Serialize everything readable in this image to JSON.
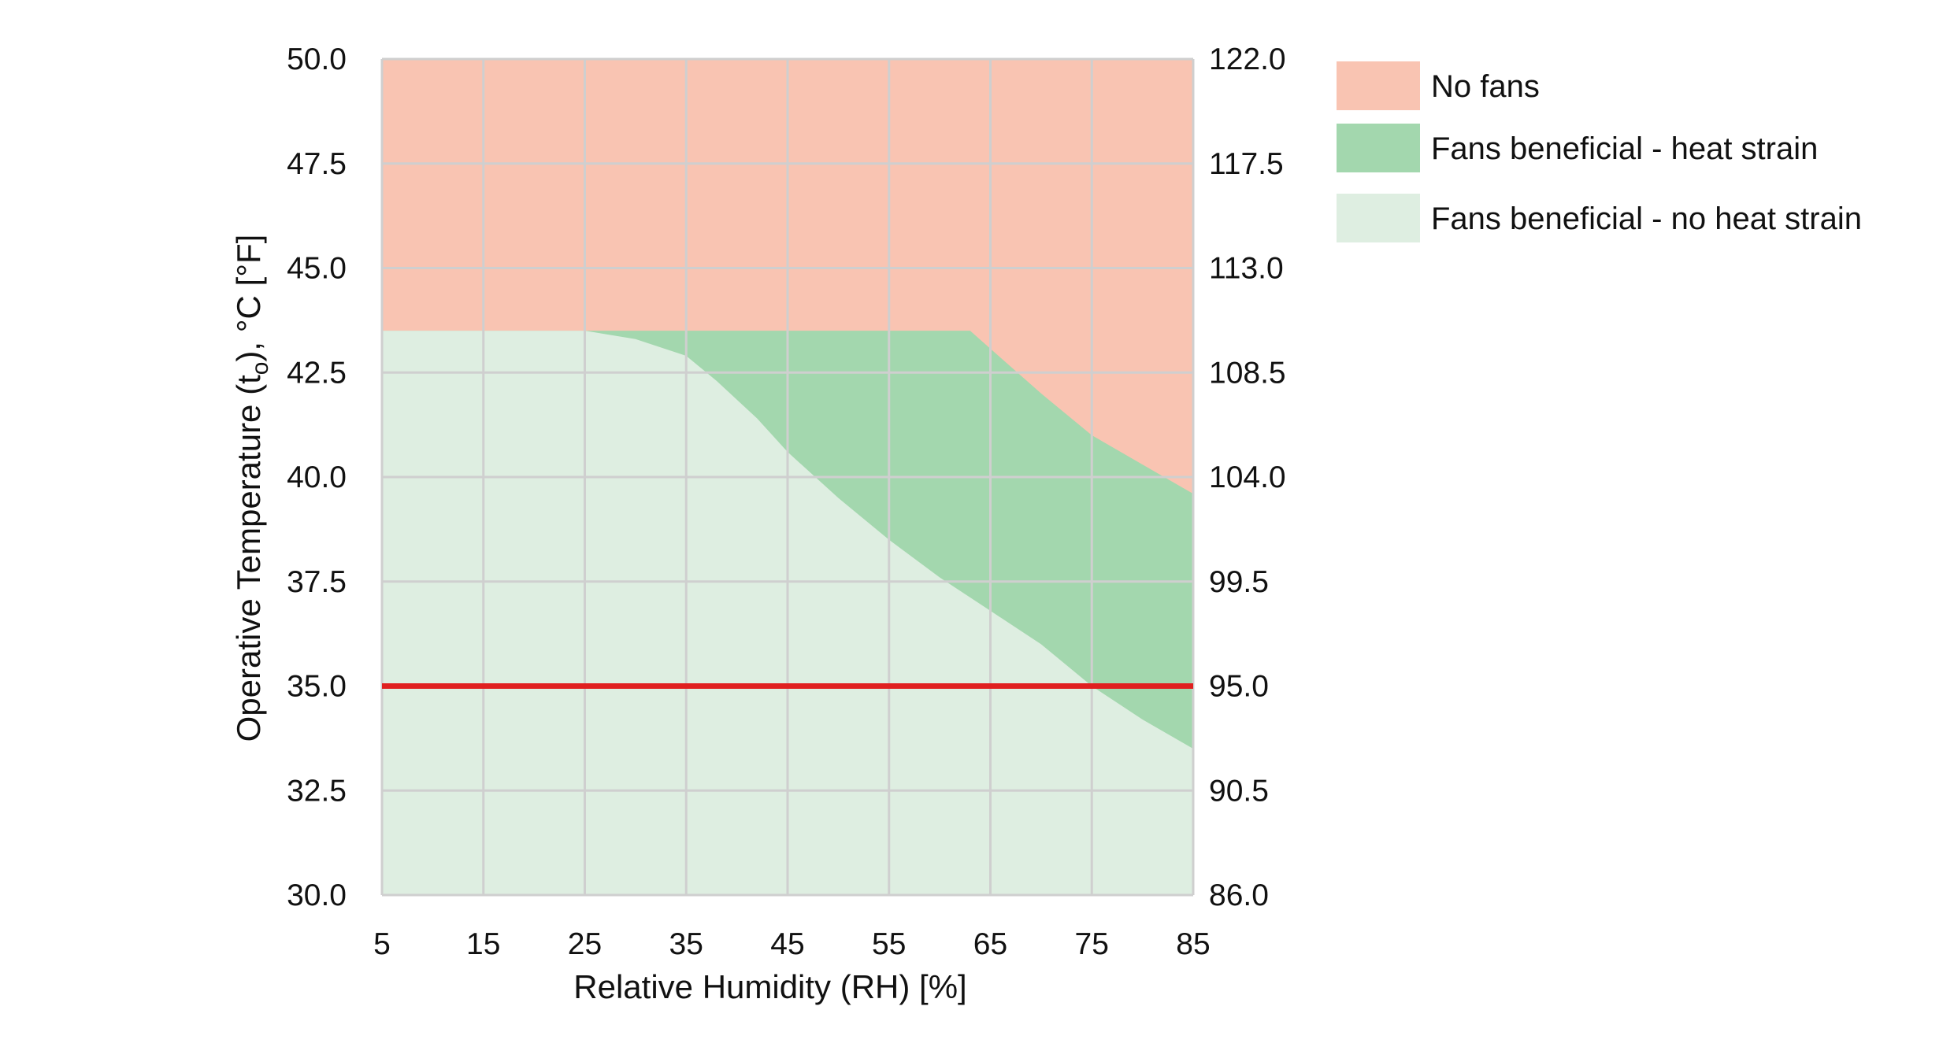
{
  "chart_data": {
    "type": "area",
    "x_axis": {
      "label": "Relative Humidity (RH) [%]",
      "range": [
        5,
        85
      ],
      "ticks": [
        5,
        15,
        25,
        35,
        45,
        55,
        65,
        75,
        85
      ],
      "tick_labels": [
        "5",
        "15",
        "25",
        "35",
        "45",
        "55",
        "65",
        "75",
        "85"
      ]
    },
    "y_axis_left": {
      "label_main": "Operative Temperature (t",
      "label_sub": "o",
      "label_end": "), °C [°F]",
      "range": [
        30.0,
        50.0
      ],
      "ticks": [
        30.0,
        32.5,
        35.0,
        37.5,
        40.0,
        42.5,
        45.0,
        47.5,
        50.0
      ],
      "tick_labels": [
        "30.0",
        "32.5",
        "35.0",
        "37.5",
        "40.0",
        "42.5",
        "45.0",
        "47.5",
        "50.0"
      ]
    },
    "y_axis_right": {
      "unit": "°F",
      "tick_labels": [
        "86.0",
        "90.5",
        "95.0",
        "99.5",
        "104.0",
        "108.5",
        "113.0",
        "117.5",
        "122.0"
      ]
    },
    "grid": true,
    "legend_position": "top-right",
    "series": [
      {
        "name": "No fans",
        "color": "#f9c4b2",
        "region": "fill from upper boundary of heat strain region to 50.0"
      },
      {
        "name": "Fans beneficial - heat strain",
        "color": "#a3d7ae",
        "upper_boundary": {
          "x": [
            5,
            63,
            70,
            75,
            80,
            85
          ],
          "y": [
            43.5,
            43.5,
            42.0,
            41.0,
            40.3,
            39.6
          ]
        }
      },
      {
        "name": "Fans beneficial - no heat strain",
        "color": "#deeee1",
        "upper_boundary": {
          "x": [
            5,
            25,
            30,
            35,
            38,
            42,
            45,
            50,
            55,
            60,
            65,
            70,
            75,
            80,
            85
          ],
          "y": [
            43.5,
            43.5,
            43.3,
            42.9,
            42.3,
            41.4,
            40.6,
            39.5,
            38.5,
            37.6,
            36.8,
            36.0,
            35.0,
            34.2,
            33.5
          ]
        }
      }
    ],
    "reference_line": {
      "y": 35.0,
      "color": "#e02020"
    }
  }
}
